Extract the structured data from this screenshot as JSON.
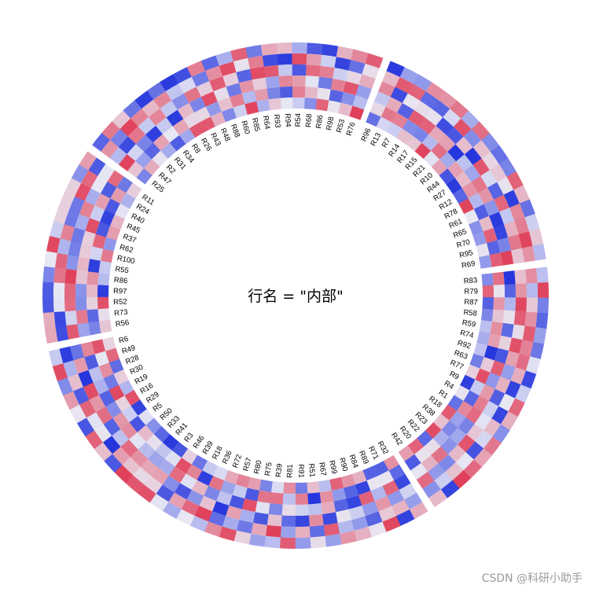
{
  "chart_data": {
    "type": "heatmap",
    "layout": "circular",
    "title": "行名 = \"内部\"",
    "n_tracks": 6,
    "colors": {
      "low": "#2233dd",
      "mid": "#e8e8f4",
      "high": "#e0405a"
    },
    "sectors": [
      {
        "rows": [
          "R96",
          "R13",
          "R7",
          "R14",
          "R17",
          "R15",
          "R21",
          "R10",
          "R44",
          "R27",
          "R12",
          "R78",
          "R61",
          "R65",
          "R70",
          "R95",
          "R69"
        ]
      },
      {
        "rows": [
          "R83",
          "R79",
          "R87",
          "R58",
          "R59",
          "R74",
          "R92",
          "R63",
          "R77",
          "R9",
          "R4",
          "R1",
          "R18",
          "R38",
          "R23",
          "R22",
          "R20",
          "R42"
        ]
      },
      {
        "rows": [
          "R32",
          "R71",
          "R89",
          "R84",
          "R90",
          "R99",
          "R67",
          "R51",
          "R91",
          "R81",
          "R39",
          "R75",
          "R80",
          "R57",
          "R72",
          "R36",
          "R18",
          "R39",
          "R46",
          "R3",
          "R41",
          "R33",
          "R50",
          "R5",
          "R29",
          "R16",
          "R19",
          "R30",
          "R28",
          "R49",
          "R6"
        ]
      },
      {
        "rows": [
          "R56",
          "R73",
          "R52",
          "R97",
          "R86",
          "R55",
          "R100",
          "R62",
          "R37",
          "R45",
          "R40",
          "R24",
          "R11"
        ]
      },
      {
        "rows": [
          "R25",
          "R47",
          "R2",
          "R31",
          "R34",
          "R8",
          "R26",
          "R43",
          "R48",
          "R88",
          "R60",
          "R85",
          "R64",
          "R93",
          "R94",
          "R54",
          "R68",
          "R86",
          "R98",
          "R53",
          "R76"
        ]
      }
    ]
  },
  "watermark": "CSDN @科研小助手"
}
